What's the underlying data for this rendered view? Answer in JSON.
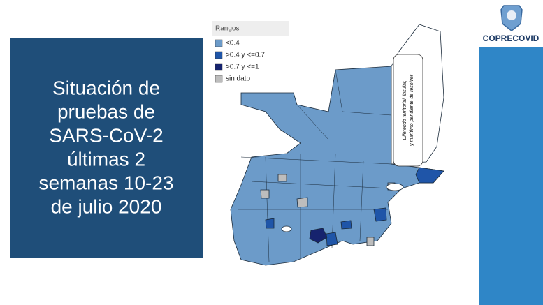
{
  "slide": {
    "title_lines": [
      "Situación de",
      "pruebas de",
      "SARS-CoV-2",
      "últimas 2",
      "semanas 10-23",
      "de julio 2020"
    ],
    "logo": "COPRECOVID",
    "legend": {
      "title": "Rangos",
      "items": [
        {
          "label": "<0.4",
          "color": "#6c9bc9"
        },
        {
          "label": ">0.4 y <=0.7",
          "color": "#1f55a8"
        },
        {
          "label": ">0.7 y <=1",
          "color": "#16236e"
        },
        {
          "label": "sin dato",
          "color": "#bdbdbd"
        }
      ]
    },
    "annotation_lines": [
      "Diferendo territorial, insular,",
      "y marítimo pendiente de resolver"
    ]
  }
}
